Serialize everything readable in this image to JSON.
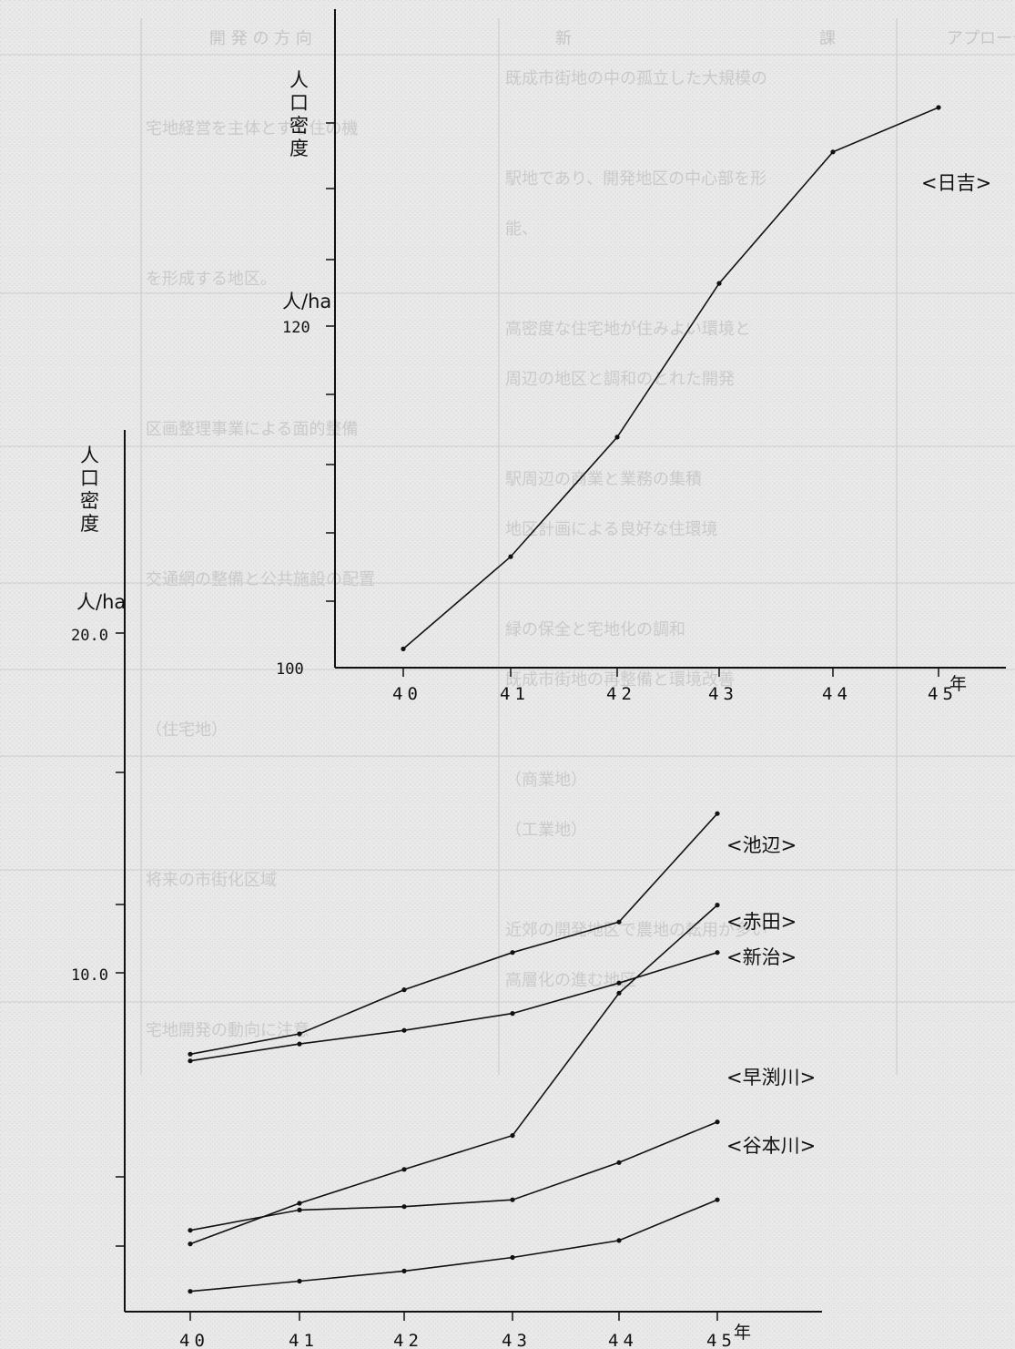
{
  "bg_text": {
    "cols": [
      "開 発 の 方 向",
      "新",
      "課",
      "アプローチ"
    ],
    "rows": [
      "既成市街地の中の孤立した大規模の",
      "宅地経営を主体とする住の機",
      "駅地であり、開発地区の中心部を形",
      "能、",
      "を形成する地区。",
      "高密度な住宅地が住みよい環境と",
      "周辺の地区と調和のとれた開発",
      "区画整理事業による面的整備",
      "駅周辺の商業と業務の集積",
      "地区計画による良好な住環境",
      "交通網の整備と公共施設の配置",
      "緑の保全と宅地化の調和",
      "既成市街地の再整備と環境改善",
      "（住宅地）",
      "（商業地）",
      "（工業地）",
      "将来の市街化区域",
      "近郊の開発地区で農地の転用が多い",
      "高層化の進む地区",
      "宅地開発の動向に注意"
    ]
  },
  "chart_data": [
    {
      "type": "line",
      "title": "",
      "ylabel": "人口密度",
      "yunit": "人/ha",
      "xunit": "年",
      "categories": [
        "40",
        "41",
        "42",
        "43",
        "44",
        "45"
      ],
      "ytick_labels": [
        "100",
        "120"
      ],
      "ylim": [
        100,
        139
      ],
      "grid": false,
      "series": [
        {
          "name": "<日吉>",
          "values": [
            101.1,
            106.5,
            113.5,
            122.5,
            130.2,
            132.8
          ]
        }
      ]
    },
    {
      "type": "line",
      "title": "",
      "ylabel": "人口密度",
      "yunit": "人/ha",
      "xunit": "年",
      "categories": [
        "40",
        "41",
        "42",
        "43",
        "44",
        "45"
      ],
      "ytick_labels": [
        "20.0",
        "10.0"
      ],
      "ylim": [
        0,
        21
      ],
      "grid": false,
      "series": [
        {
          "name": "<池辺>",
          "values": [
            7.6,
            8.2,
            9.5,
            10.6,
            11.5,
            14.7
          ]
        },
        {
          "name": "<赤田>",
          "values": [
            2.0,
            3.2,
            4.2,
            5.2,
            9.4,
            12.0
          ]
        },
        {
          "name": "<新治>",
          "values": [
            7.4,
            7.9,
            8.3,
            8.8,
            9.7,
            10.6
          ]
        },
        {
          "name": "<早渕川>",
          "values": [
            2.4,
            3.0,
            3.1,
            3.3,
            4.4,
            5.6
          ]
        },
        {
          "name": "<谷本川>",
          "values": [
            0.6,
            0.9,
            1.2,
            1.6,
            2.1,
            3.3
          ]
        }
      ]
    }
  ]
}
